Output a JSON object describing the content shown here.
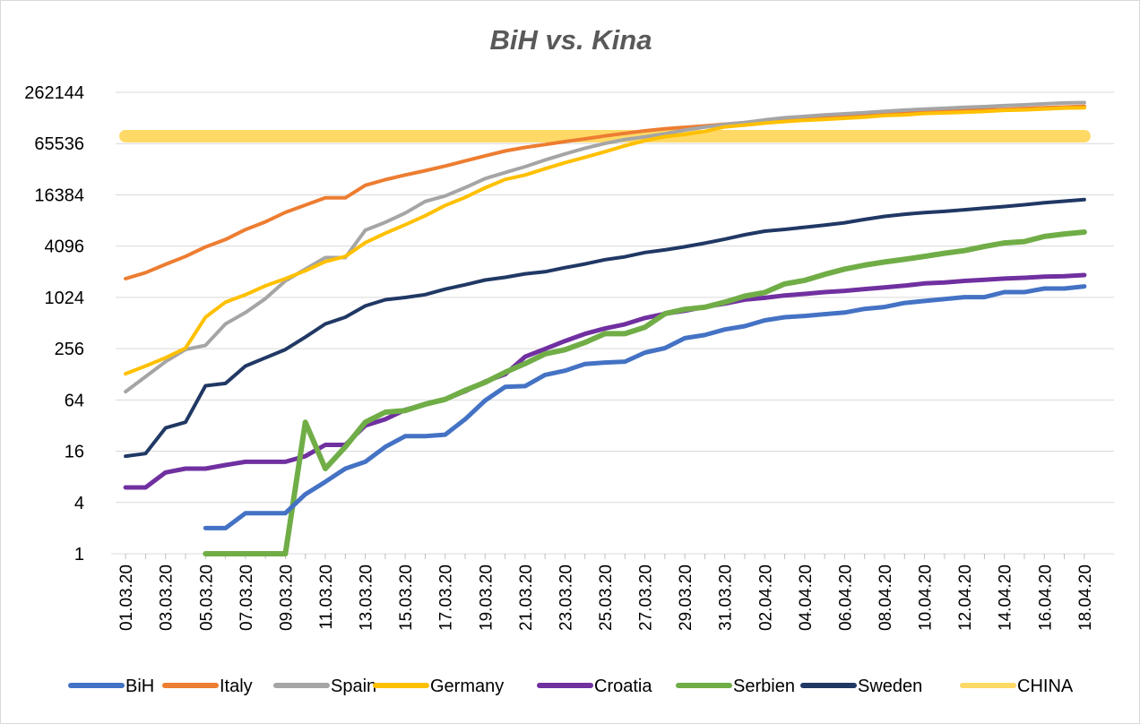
{
  "chart_data": {
    "type": "line",
    "title": "BiH vs. Kina",
    "y_scale": "log2",
    "ylim": [
      1,
      262144
    ],
    "y_ticks": [
      1,
      4,
      16,
      64,
      256,
      1024,
      4096,
      16384,
      65536,
      262144
    ],
    "y_tick_labels": [
      "1",
      "4",
      "16",
      "64",
      "256",
      "1024",
      "4096",
      "16384",
      "65536",
      "262144"
    ],
    "x": [
      "01.03.20",
      "02.03.20",
      "03.03.20",
      "04.03.20",
      "05.03.20",
      "06.03.20",
      "07.03.20",
      "08.03.20",
      "09.03.20",
      "10.03.20",
      "11.03.20",
      "12.03.20",
      "13.03.20",
      "14.03.20",
      "15.03.20",
      "16.03.20",
      "17.03.20",
      "18.03.20",
      "19.03.20",
      "20.03.20",
      "21.03.20",
      "22.03.20",
      "23.03.20",
      "24.03.20",
      "25.03.20",
      "26.03.20",
      "27.03.20",
      "28.03.20",
      "29.03.20",
      "30.03.20",
      "31.03.20",
      "01.04.20",
      "02.04.20",
      "03.04.20",
      "04.04.20",
      "05.04.20",
      "06.04.20",
      "07.04.20",
      "08.04.20",
      "09.04.20",
      "10.04.20",
      "11.04.20",
      "12.04.20",
      "13.04.20",
      "14.04.20",
      "15.04.20",
      "16.04.20",
      "17.04.20",
      "18.04.20"
    ],
    "x_tick_labels": [
      "01.03.20",
      "03.03.20",
      "05.03.20",
      "07.03.20",
      "09.03.20",
      "11.03.20",
      "13.03.20",
      "15.03.20",
      "17.03.20",
      "19.03.20",
      "21.03.20",
      "23.03.20",
      "25.03.20",
      "27.03.20",
      "29.03.20",
      "31.03.20",
      "02.04.20",
      "04.04.20",
      "06.04.20",
      "08.04.20",
      "10.04.20",
      "12.04.20",
      "14.04.20",
      "16.04.20",
      "18.04.20"
    ],
    "grid": "horizontal",
    "legend_position": "bottom",
    "series": [
      {
        "name": "BiH",
        "color": "#4472C4",
        "width": 5,
        "values": [
          null,
          null,
          null,
          null,
          2,
          2,
          3,
          3,
          3,
          5,
          7,
          10,
          12,
          18,
          24,
          24,
          25,
          38,
          63,
          91,
          93,
          126,
          141,
          169,
          176,
          180,
          230,
          260,
          340,
          370,
          430,
          470,
          550,
          600,
          620,
          650,
          680,
          750,
          790,
          880,
          930,
          980,
          1030,
          1030,
          1180,
          1180,
          1300,
          1300,
          1380
        ]
      },
      {
        "name": "Italy",
        "color": "#ED7D31",
        "width": 4,
        "values": [
          1700,
          2000,
          2500,
          3100,
          4000,
          4900,
          6400,
          7900,
          10200,
          12400,
          15100,
          15100,
          21200,
          24700,
          28000,
          31500,
          35700,
          41000,
          47000,
          53600,
          59100,
          63900,
          69200,
          74400,
          80500,
          86500,
          92500,
          97700,
          101700,
          105800,
          110600,
          115200,
          119800,
          124600,
          128900,
          132500,
          135600,
          139400,
          143600,
          147600,
          152300,
          156400,
          159500,
          162500,
          165200,
          168900,
          172400,
          175900,
          178900
        ]
      },
      {
        "name": "Spain",
        "color": "#A5A5A5",
        "width": 4,
        "values": [
          80,
          120,
          180,
          250,
          280,
          500,
          680,
          990,
          1600,
          2200,
          3000,
          3000,
          6300,
          7800,
          10000,
          13700,
          15900,
          19900,
          25400,
          29900,
          35100,
          42000,
          49500,
          57800,
          65700,
          73200,
          78700,
          85200,
          94400,
          102100,
          110200,
          116000,
          124400,
          131600,
          136700,
          141900,
          146700,
          151100,
          157000,
          161900,
          166800,
          169800,
          174600,
          178000,
          182800,
          186600,
          191700,
          196700,
          198600
        ]
      },
      {
        "name": "Germany",
        "color": "#FFC000",
        "width": 4,
        "values": [
          130,
          160,
          200,
          260,
          600,
          900,
          1100,
          1400,
          1700,
          2100,
          2700,
          3100,
          4500,
          5800,
          7300,
          9300,
          12300,
          15300,
          19800,
          24800,
          28000,
          33200,
          39000,
          45100,
          52600,
          61700,
          71000,
          79000,
          84000,
          91000,
          103000,
          108000,
          114000,
          119000,
          123000,
          126000,
          130000,
          134000,
          140000,
          142000,
          148000,
          150000,
          153000,
          156000,
          161000,
          163000,
          167000,
          171000,
          173000
        ]
      },
      {
        "name": "Croatia",
        "color": "#7030A0",
        "width": 5,
        "values": [
          6,
          6,
          9,
          10,
          10,
          11,
          12,
          12,
          12,
          14,
          19,
          19,
          32,
          38,
          49,
          57,
          65,
          81,
          105,
          128,
          206,
          254,
          315,
          382,
          442,
          495,
          586,
          657,
          713,
          790,
          867,
          963,
          1011,
          1079,
          1126,
          1182,
          1222,
          1282,
          1343,
          1407,
          1495,
          1534,
          1600,
          1650,
          1704,
          1741,
          1791,
          1814,
          1871
        ]
      },
      {
        "name": "Serbien",
        "color": "#70AD47",
        "width": 6,
        "values": [
          null,
          null,
          null,
          null,
          1,
          1,
          1,
          1,
          1,
          35,
          10,
          18,
          35,
          46,
          48,
          57,
          65,
          83,
          103,
          135,
          171,
          222,
          249,
          303,
          384,
          384,
          457,
          659,
          741,
          785,
          900,
          1060,
          1171,
          1476,
          1624,
          1908,
          2200,
          2447,
          2666,
          2867,
          3105,
          3380,
          3630,
          4054,
          4465,
          4630,
          5318,
          5690,
          5994
        ]
      },
      {
        "name": "Sweden",
        "color": "#203864",
        "width": 4,
        "values": [
          14,
          15,
          30,
          35,
          94,
          100,
          160,
          200,
          250,
          350,
          500,
          600,
          814,
          961,
          1022,
          1103,
          1279,
          1439,
          1639,
          1763,
          1934,
          2046,
          2286,
          2526,
          2840,
          3069,
          3447,
          3700,
          4028,
          4435,
          4947,
          5568,
          6131,
          6443,
          6830,
          7206,
          7693,
          8419,
          9141,
          9685,
          10151,
          10483,
          10948,
          11445,
          11927,
          12540,
          13216,
          13822,
          14385
        ]
      },
      {
        "name": "CHINA",
        "color": "#FFD966",
        "width": 14,
        "values": [
          80000,
          80000,
          80000,
          80000,
          80000,
          80000,
          80000,
          80000,
          80000,
          80000,
          80000,
          80000,
          80000,
          80000,
          80000,
          80000,
          80000,
          80000,
          80000,
          80000,
          80000,
          80000,
          80000,
          80000,
          80000,
          80000,
          80000,
          80000,
          80000,
          80000,
          80000,
          80000,
          80000,
          80000,
          80000,
          80000,
          80000,
          80000,
          80000,
          80000,
          80000,
          80000,
          80000,
          80000,
          80000,
          80000,
          80000,
          80000,
          80000
        ]
      }
    ]
  }
}
